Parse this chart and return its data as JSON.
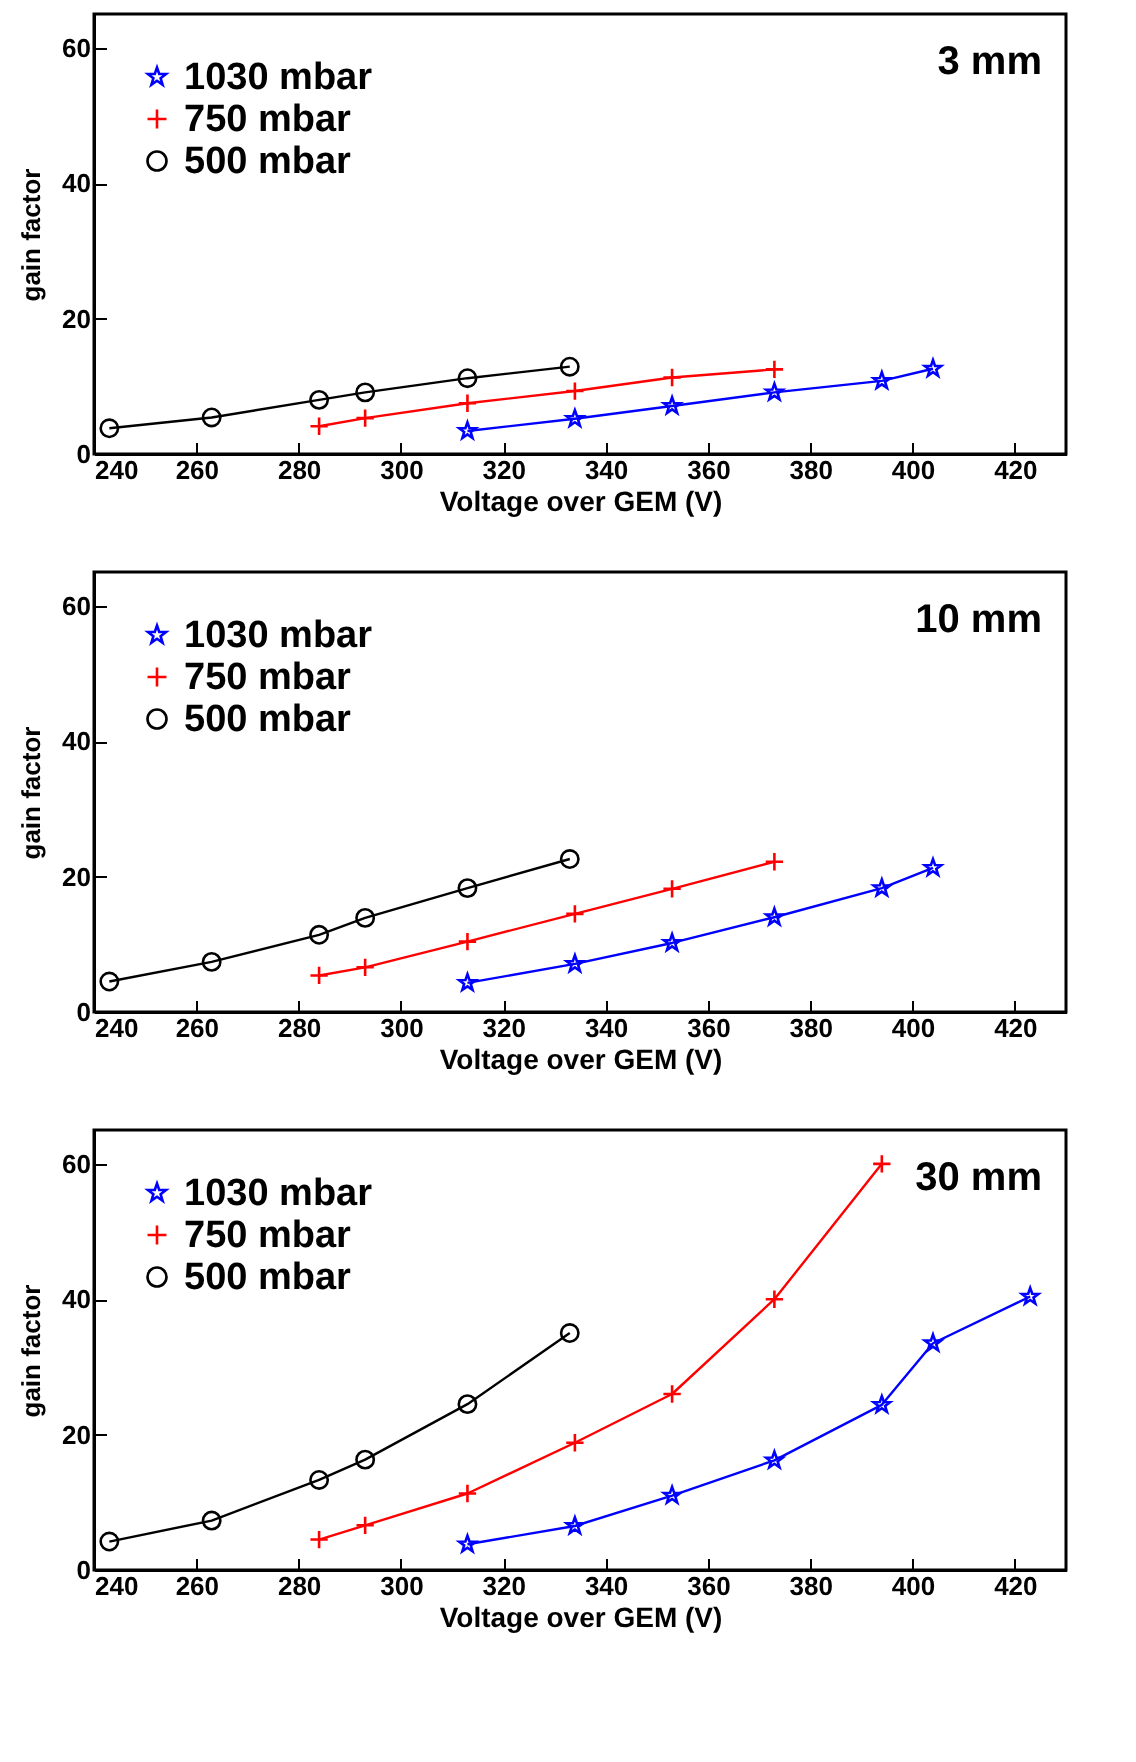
{
  "chart_data": [
    {
      "type": "line",
      "xlabel": "Voltage over GEM (V)",
      "ylabel": "gain factor",
      "annotations": [
        "3 mm"
      ],
      "xlim": [
        240,
        430
      ],
      "xticks": [
        240,
        260,
        280,
        300,
        320,
        340,
        360,
        380,
        400,
        420
      ],
      "ylim": [
        0,
        65
      ],
      "yticks": [
        0,
        20,
        40,
        60
      ],
      "grid": false,
      "legend": "top left",
      "series": [
        {
          "name": "1030 mbar",
          "color": "#0000ff",
          "marker": "star",
          "x": [
            313,
            334,
            353,
            373,
            394,
            404
          ],
          "values": [
            3.4,
            5.2,
            7.1,
            9.1,
            10.8,
            12.6
          ]
        },
        {
          "name": "750 mbar",
          "color": "#ff0000",
          "marker": "cross",
          "x": [
            284,
            293,
            313,
            334,
            353,
            373
          ],
          "values": [
            4.1,
            5.3,
            7.5,
            9.3,
            11.3,
            12.5
          ]
        },
        {
          "name": "500 mbar",
          "color": "#000000",
          "marker": "circle",
          "x": [
            243,
            263,
            284,
            293,
            313,
            333
          ],
          "values": [
            3.8,
            5.4,
            8.0,
            9.1,
            11.2,
            12.9
          ]
        }
      ]
    },
    {
      "type": "line",
      "xlabel": "Voltage over GEM (V)",
      "ylabel": "gain factor",
      "annotations": [
        "10 mm"
      ],
      "xlim": [
        240,
        430
      ],
      "xticks": [
        240,
        260,
        280,
        300,
        320,
        340,
        360,
        380,
        400,
        420
      ],
      "ylim": [
        0,
        65
      ],
      "yticks": [
        0,
        20,
        40,
        60
      ],
      "grid": false,
      "legend": "top left",
      "series": [
        {
          "name": "1030 mbar",
          "color": "#0000ff",
          "marker": "star",
          "x": [
            313,
            334,
            353,
            373,
            394,
            404
          ],
          "values": [
            4.3,
            7.1,
            10.2,
            14.0,
            18.3,
            21.3
          ]
        },
        {
          "name": "750 mbar",
          "color": "#ff0000",
          "marker": "cross",
          "x": [
            284,
            293,
            313,
            334,
            353,
            373
          ],
          "values": [
            5.4,
            6.6,
            10.4,
            14.5,
            18.2,
            22.2
          ]
        },
        {
          "name": "500 mbar",
          "color": "#000000",
          "marker": "circle",
          "x": [
            243,
            263,
            284,
            293,
            313,
            333
          ],
          "values": [
            4.5,
            7.4,
            11.4,
            13.9,
            18.3,
            22.6
          ]
        }
      ]
    },
    {
      "type": "line",
      "xlabel": "Voltage over GEM (V)",
      "ylabel": "gain factor",
      "annotations": [
        "30 mm"
      ],
      "xlim": [
        240,
        430
      ],
      "xticks": [
        240,
        260,
        280,
        300,
        320,
        340,
        360,
        380,
        400,
        420
      ],
      "ylim": [
        0,
        65
      ],
      "yticks": [
        0,
        20,
        40,
        60
      ],
      "grid": false,
      "legend": "top left",
      "series": [
        {
          "name": "1030 mbar",
          "color": "#0000ff",
          "marker": "star",
          "x": [
            313,
            334,
            353,
            373,
            394,
            404,
            423
          ],
          "values": [
            3.8,
            6.5,
            11.0,
            16.2,
            24.4,
            33.5,
            40.4
          ]
        },
        {
          "name": "750 mbar",
          "color": "#ff0000",
          "marker": "cross",
          "x": [
            284,
            293,
            313,
            334,
            353,
            373,
            394
          ],
          "values": [
            4.5,
            6.6,
            11.3,
            18.8,
            26.0,
            40.0,
            60
          ]
        },
        {
          "name": "500 mbar",
          "color": "#000000",
          "marker": "circle",
          "x": [
            243,
            263,
            284,
            293,
            313,
            333
          ],
          "values": [
            4.2,
            7.3,
            13.3,
            16.3,
            24.5,
            35.0
          ]
        }
      ]
    }
  ]
}
